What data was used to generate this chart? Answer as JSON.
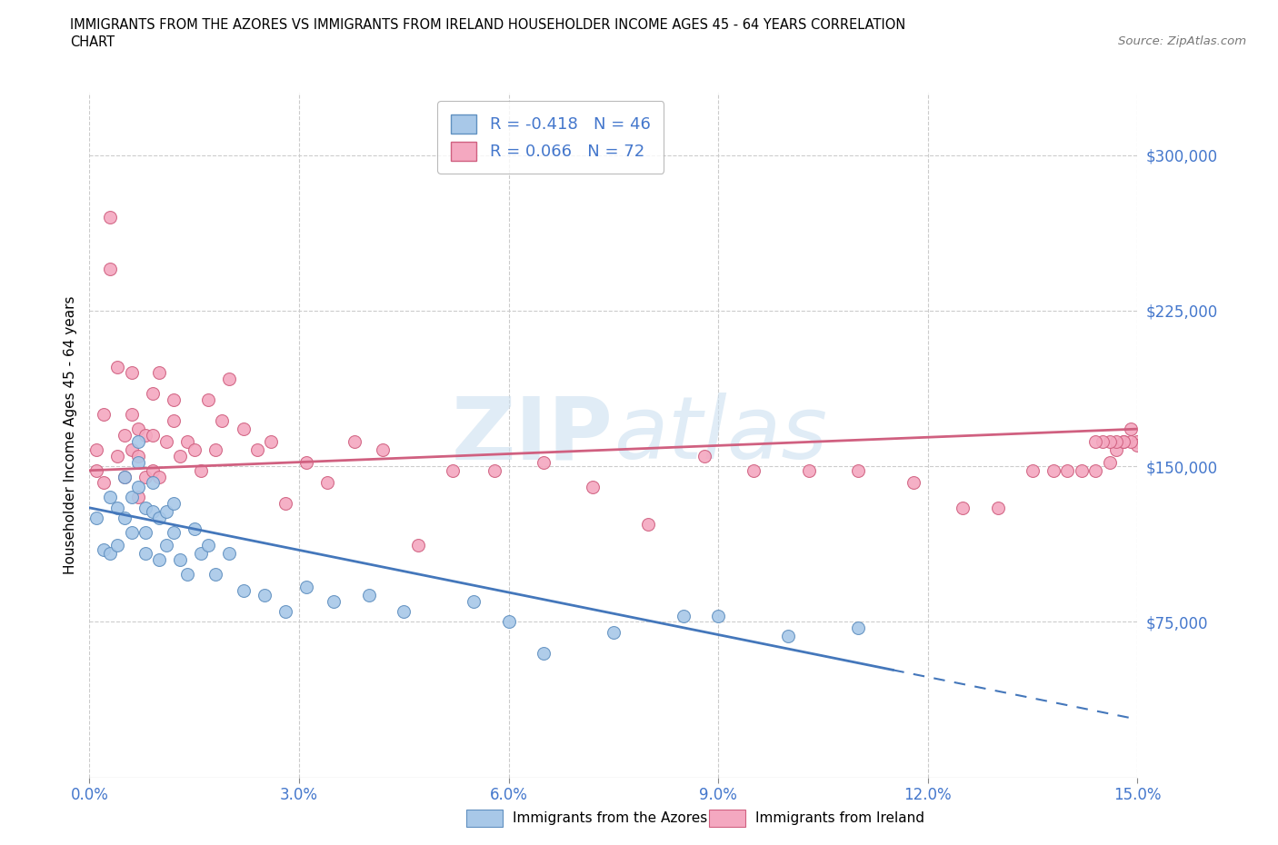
{
  "title_line1": "IMMIGRANTS FROM THE AZORES VS IMMIGRANTS FROM IRELAND HOUSEHOLDER INCOME AGES 45 - 64 YEARS CORRELATION",
  "title_line2": "CHART",
  "source": "Source: ZipAtlas.com",
  "ylabel": "Householder Income Ages 45 - 64 years",
  "legend_label_blue": "Immigrants from the Azores",
  "legend_label_pink": "Immigrants from Ireland",
  "R_blue": -0.418,
  "N_blue": 46,
  "R_pink": 0.066,
  "N_pink": 72,
  "color_blue": "#a8c8e8",
  "color_blue_edge": "#6090c0",
  "color_pink": "#f4a8c0",
  "color_pink_edge": "#d06080",
  "line_color_blue": "#4477bb",
  "line_color_pink": "#d06080",
  "text_color": "#4477cc",
  "watermark_color": "#cce0f0",
  "xlim": [
    0.0,
    0.15
  ],
  "ylim": [
    0,
    330000
  ],
  "yticks": [
    75000,
    150000,
    225000,
    300000
  ],
  "ytick_labels": [
    "$75,000",
    "$150,000",
    "$225,000",
    "$300,000"
  ],
  "xticks": [
    0.0,
    0.03,
    0.06,
    0.09,
    0.12,
    0.15
  ],
  "xtick_labels": [
    "0.0%",
    "3.0%",
    "6.0%",
    "9.0%",
    "12.0%",
    "15.0%"
  ],
  "grid_color": "#cccccc",
  "blue_x": [
    0.001,
    0.002,
    0.003,
    0.003,
    0.004,
    0.004,
    0.005,
    0.005,
    0.006,
    0.006,
    0.007,
    0.007,
    0.007,
    0.008,
    0.008,
    0.008,
    0.009,
    0.009,
    0.01,
    0.01,
    0.011,
    0.011,
    0.012,
    0.012,
    0.013,
    0.014,
    0.015,
    0.016,
    0.017,
    0.018,
    0.02,
    0.022,
    0.025,
    0.028,
    0.031,
    0.035,
    0.04,
    0.045,
    0.055,
    0.06,
    0.065,
    0.075,
    0.085,
    0.09,
    0.1,
    0.11
  ],
  "blue_y": [
    125000,
    110000,
    135000,
    108000,
    130000,
    112000,
    145000,
    125000,
    135000,
    118000,
    162000,
    152000,
    140000,
    130000,
    118000,
    108000,
    142000,
    128000,
    125000,
    105000,
    128000,
    112000,
    132000,
    118000,
    105000,
    98000,
    120000,
    108000,
    112000,
    98000,
    108000,
    90000,
    88000,
    80000,
    92000,
    85000,
    88000,
    80000,
    85000,
    75000,
    60000,
    70000,
    78000,
    78000,
    68000,
    72000
  ],
  "pink_x": [
    0.001,
    0.001,
    0.002,
    0.002,
    0.003,
    0.003,
    0.004,
    0.004,
    0.005,
    0.005,
    0.006,
    0.006,
    0.006,
    0.007,
    0.007,
    0.007,
    0.008,
    0.008,
    0.009,
    0.009,
    0.009,
    0.01,
    0.01,
    0.011,
    0.012,
    0.012,
    0.013,
    0.014,
    0.015,
    0.016,
    0.017,
    0.018,
    0.019,
    0.02,
    0.022,
    0.024,
    0.026,
    0.028,
    0.031,
    0.034,
    0.038,
    0.042,
    0.047,
    0.052,
    0.058,
    0.065,
    0.072,
    0.08,
    0.088,
    0.095,
    0.103,
    0.11,
    0.118,
    0.125,
    0.13,
    0.135,
    0.138,
    0.14,
    0.142,
    0.144,
    0.146,
    0.147,
    0.148,
    0.149,
    0.15,
    0.15,
    0.149,
    0.148,
    0.147,
    0.146,
    0.145,
    0.144
  ],
  "pink_y": [
    158000,
    148000,
    175000,
    142000,
    245000,
    270000,
    198000,
    155000,
    165000,
    145000,
    158000,
    175000,
    195000,
    168000,
    155000,
    135000,
    165000,
    145000,
    185000,
    165000,
    148000,
    195000,
    145000,
    162000,
    182000,
    172000,
    155000,
    162000,
    158000,
    148000,
    182000,
    158000,
    172000,
    192000,
    168000,
    158000,
    162000,
    132000,
    152000,
    142000,
    162000,
    158000,
    112000,
    148000,
    148000,
    152000,
    140000,
    122000,
    155000,
    148000,
    148000,
    148000,
    142000,
    130000,
    130000,
    148000,
    148000,
    148000,
    148000,
    148000,
    152000,
    158000,
    162000,
    168000,
    162000,
    160000,
    162000,
    162000,
    162000,
    162000,
    162000,
    162000
  ],
  "blue_trend_x0": 0.0,
  "blue_trend_y0": 130000,
  "blue_trend_x1": 0.15,
  "blue_trend_y1": 28000,
  "pink_trend_x0": 0.0,
  "pink_trend_y0": 148000,
  "pink_trend_x1": 0.15,
  "pink_trend_y1": 168000
}
